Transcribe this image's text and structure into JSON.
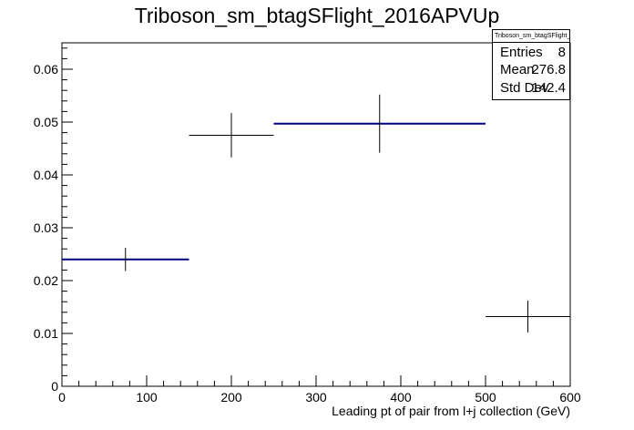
{
  "chart_data": {
    "type": "histogram",
    "title": "Triboson_sm_btagSFlight_2016APVUp",
    "xlabel": "Leading pt of pair from l+j collection (GeV)",
    "ylabel": "",
    "xlim": [
      0,
      600
    ],
    "ylim": [
      0,
      0.065
    ],
    "x_ticks": [
      "0",
      "100",
      "200",
      "300",
      "400",
      "500",
      "600"
    ],
    "y_ticks": [
      "0",
      "0.01",
      "0.02",
      "0.03",
      "0.04",
      "0.05",
      "0.06"
    ],
    "grid": false,
    "line_color": "#000080",
    "bins": [
      {
        "x_low": 0,
        "x_high": 150,
        "value": 0.024,
        "error": 0.0022,
        "center": 75,
        "line_color": "#000080"
      },
      {
        "x_low": 150,
        "x_high": 250,
        "value": 0.0475,
        "error": 0.0042,
        "center": 200,
        "line_color": "#000000"
      },
      {
        "x_low": 250,
        "x_high": 500,
        "value": 0.0497,
        "error": 0.0055,
        "center": 375,
        "line_color": "#000080"
      },
      {
        "x_low": 500,
        "x_high": 600,
        "value": 0.0132,
        "error": 0.003,
        "center": 550,
        "line_color": "#000000"
      }
    ]
  },
  "stats": {
    "title": "Triboson_sm_btagSFlight_2016APVUp",
    "entries_label": "Entries",
    "entries_value": "8",
    "mean_label": "Mean",
    "mean_value": "276.8",
    "stddev_label": "Std Dev",
    "stddev_value": "142.4"
  }
}
